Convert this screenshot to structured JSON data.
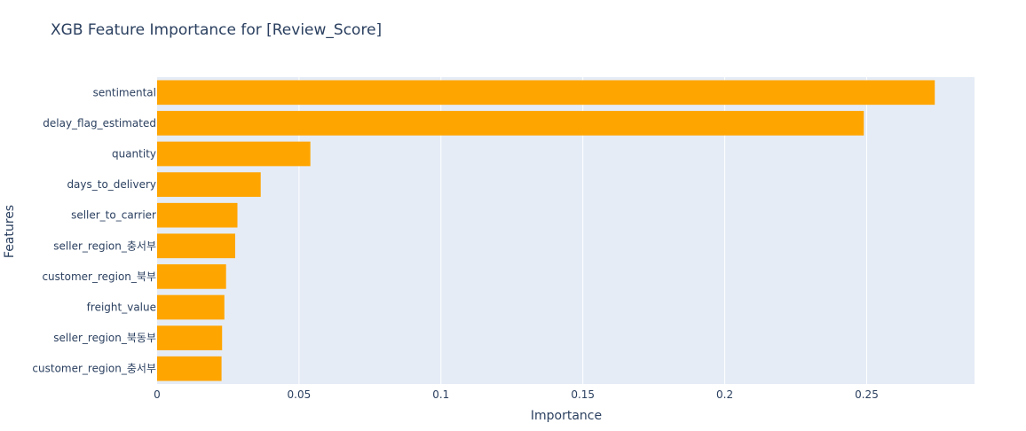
{
  "chart_data": {
    "type": "bar",
    "orientation": "horizontal",
    "title": "XGB Feature Importance for [Review_Score]",
    "xlabel": "Importance",
    "ylabel": "Features",
    "categories": [
      "sentimental",
      "delay_flag_estimated",
      "quantity",
      "days_to_delivery",
      "seller_to_carrier",
      "seller_region_충서부",
      "customer_region_북부",
      "freight_value",
      "seller_region_북동부",
      "customer_region_충서부"
    ],
    "values": [
      0.274,
      0.249,
      0.054,
      0.0365,
      0.0283,
      0.0275,
      0.0243,
      0.0237,
      0.0229,
      0.0227
    ],
    "xlim": [
      0,
      0.288
    ],
    "xticks": [
      0,
      0.05,
      0.1,
      0.15,
      0.2,
      0.25
    ],
    "xtick_labels": [
      "0",
      "0.05",
      "0.1",
      "0.15",
      "0.2",
      "0.25"
    ],
    "bar_color": "#FFA500",
    "plot_bg": "#E5ECF6",
    "grid": true
  }
}
